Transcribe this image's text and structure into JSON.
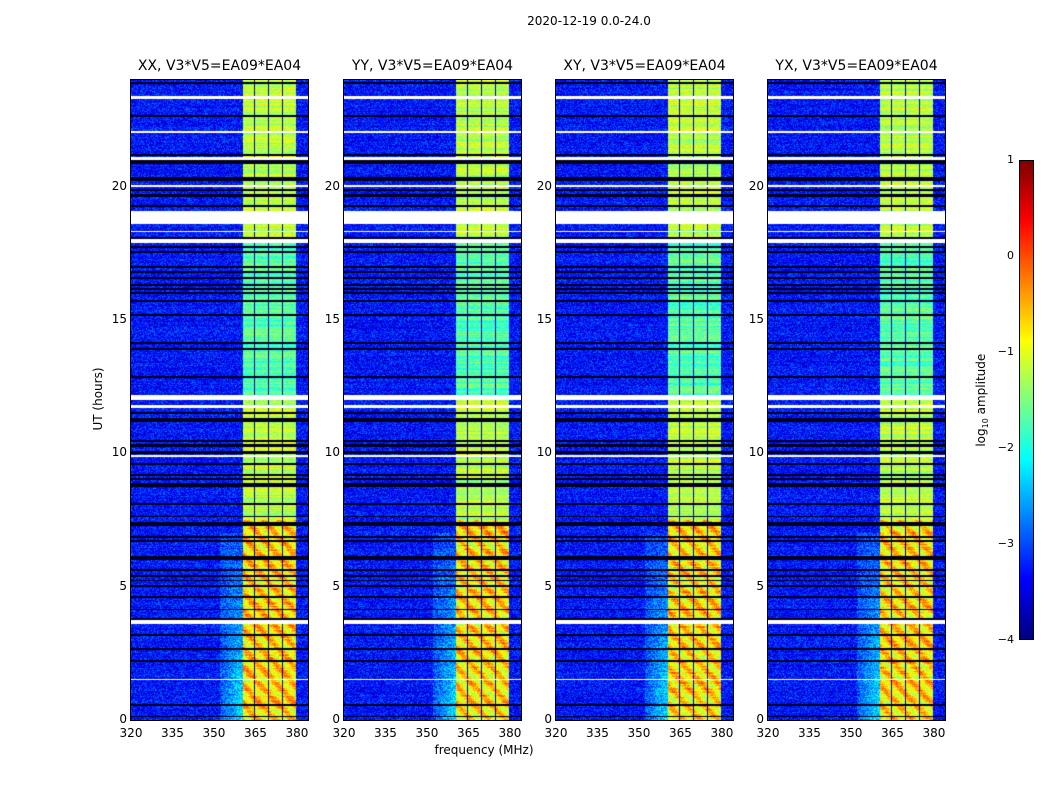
{
  "chart_data": {
    "type": "heatmap",
    "title": "2020-12-19 0.0-24.0",
    "xlabel": "frequency (MHz)",
    "ylabel": "UT (hours)",
    "xlim": [
      320,
      384
    ],
    "ylim": [
      0,
      24
    ],
    "xticks": [
      "320",
      "335",
      "350",
      "365",
      "380"
    ],
    "yticks": [
      "0",
      "5",
      "10",
      "15",
      "20"
    ],
    "panels": [
      {
        "title": "XX, V3*V5=EA09*EA04"
      },
      {
        "title": "YY, V3*V5=EA09*EA04"
      },
      {
        "title": "XY, V3*V5=EA09*EA04"
      },
      {
        "title": "YX, V3*V5=EA09*EA04"
      }
    ],
    "colorbar": {
      "label_prefix": "log",
      "label_sub": "10",
      "label_suffix": " amplitude",
      "range": [
        -4,
        1
      ],
      "ticks": [
        "1",
        "0",
        "−1",
        "−2",
        "−3",
        "−4"
      ],
      "colormap": "jet"
    },
    "background_level": -3.3,
    "rfi_band_mhz": [
      360.5,
      379.5
    ],
    "rfi_subband_edges_mhz": [
      364.6,
      369.7,
      374.8
    ],
    "rfi_band_level": -1.2,
    "flagged_hours": [
      [
        23.3,
        23.4
      ],
      [
        22.0,
        22.1
      ],
      [
        21.0,
        21.1
      ],
      [
        20.0,
        20.08
      ],
      [
        18.6,
        19.1
      ],
      [
        18.3,
        18.35
      ],
      [
        17.9,
        18.05
      ],
      [
        12.0,
        12.2
      ],
      [
        11.7,
        11.8
      ],
      [
        9.85,
        9.95
      ],
      [
        3.6,
        3.75
      ],
      [
        1.5,
        1.55
      ]
    ]
  }
}
